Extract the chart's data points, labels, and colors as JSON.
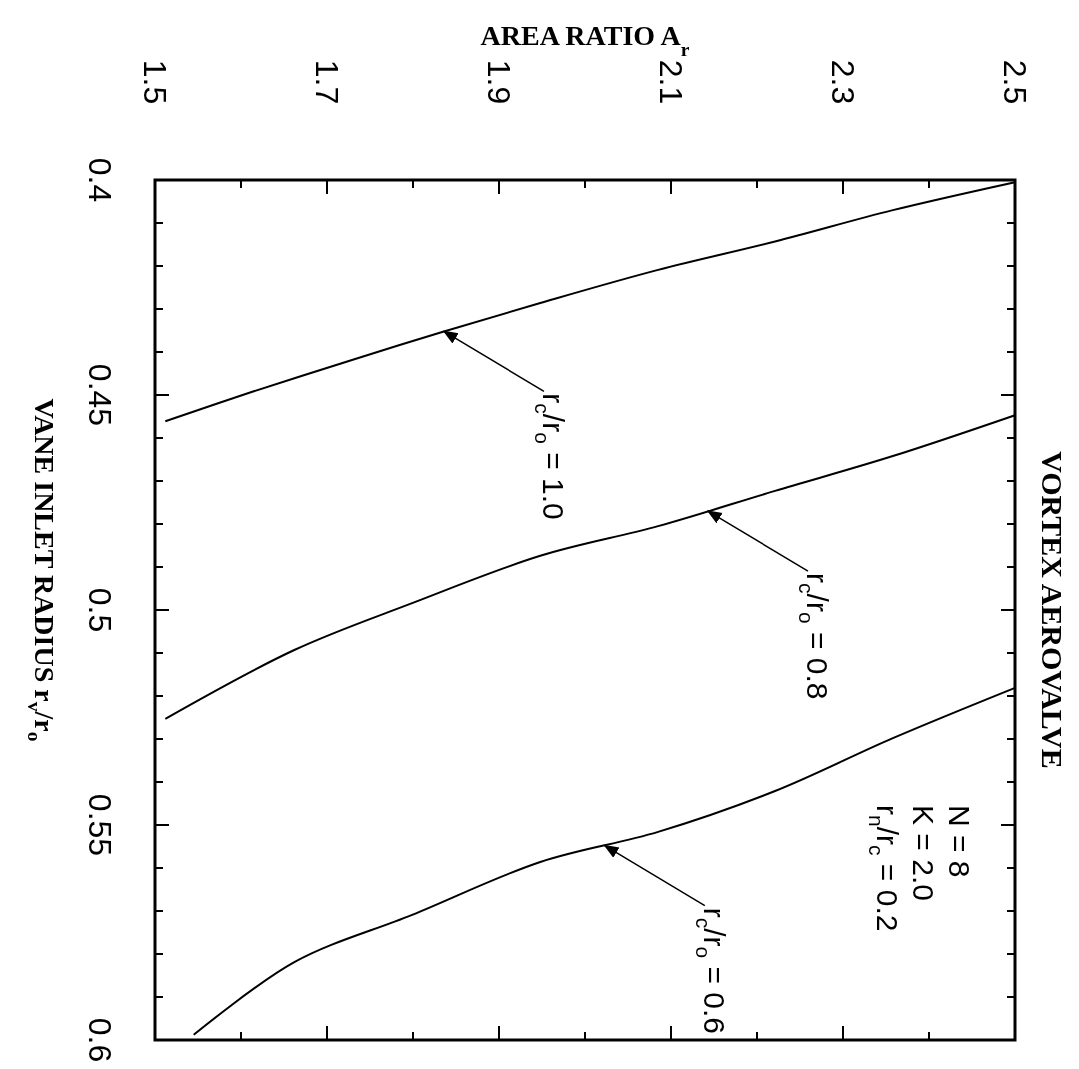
{
  "chart_data": {
    "type": "line",
    "title": "VORTEX AEROVALVE",
    "xlabel": "AREA RATIO A$_{r}$",
    "ylabel": "VANE INLET RADIUS r$_{v}$/r$_{o}$",
    "xlim": [
      1.5,
      2.5
    ],
    "ylim": [
      0.6,
      0.4
    ],
    "xticks": [
      1.5,
      {
        "value": 1.6,
        "label": null
      },
      1.7,
      {
        "value": 1.8,
        "label": null
      },
      1.9,
      {
        "value": 2.0,
        "label": null
      },
      2.1,
      {
        "value": 2.2,
        "label": null
      },
      2.3,
      {
        "value": 2.4,
        "label": null
      },
      2.5
    ],
    "yticks": [
      0.4,
      {
        "value": 0.41,
        "label": null
      },
      {
        "value": 0.42,
        "label": null
      },
      {
        "value": 0.43,
        "label": null
      },
      {
        "value": 0.44,
        "label": null
      },
      0.45,
      {
        "value": 0.46,
        "label": null
      },
      {
        "value": 0.47,
        "label": null
      },
      {
        "value": 0.48,
        "label": null
      },
      {
        "value": 0.49,
        "label": null
      },
      0.5,
      {
        "value": 0.51,
        "label": null
      },
      {
        "value": 0.52,
        "label": null
      },
      {
        "value": 0.53,
        "label": null
      },
      {
        "value": 0.54,
        "label": null
      },
      0.55,
      {
        "value": 0.56,
        "label": null
      },
      {
        "value": 0.57,
        "label": null
      },
      {
        "value": 0.58,
        "label": null
      },
      {
        "value": 0.59,
        "label": null
      },
      0.6
    ],
    "series": [
      {
        "color": "#000000",
        "x": [
          2.5,
          2.358,
          2.221,
          2.085,
          1.948,
          1.833,
          1.73,
          1.614,
          1.512
        ],
        "values": [
          0.4005,
          0.407,
          0.4143,
          0.4209,
          0.4286,
          0.4354,
          0.4418,
          0.4492,
          0.4561
        ]
      },
      {
        "color": "#000000",
        "x": [
          2.5,
          2.358,
          2.221,
          2.085,
          1.948,
          1.799,
          1.662,
          1.512
        ],
        "values": [
          0.4547,
          0.4642,
          0.4723,
          0.4805,
          0.4874,
          0.4984,
          0.5093,
          0.5253
        ]
      },
      {
        "color": "#000000",
        "x": [
          2.5,
          2.358,
          2.221,
          2.085,
          1.948,
          1.799,
          1.662,
          1.545
        ],
        "values": [
          0.5181,
          0.5298,
          0.5421,
          0.5516,
          0.5586,
          0.5709,
          0.5819,
          0.5988
        ]
      }
    ],
    "annotations": [
      {
        "text": "r$_{c}$/r$_{o}$ = 1.0",
        "x": 1.836,
        "y": 0.4352
      },
      {
        "text": "r$_{c}$/r$_{o}$ = 0.8",
        "x": 2.143,
        "y": 0.477
      },
      {
        "text": "r$_{c}$/r$_{o}$ = 0.6",
        "x": 2.023,
        "y": 0.5548
      },
      "N = 8",
      "K = 2.0",
      "r$_{n}$/r$_{c}$ = 0.2"
    ]
  }
}
